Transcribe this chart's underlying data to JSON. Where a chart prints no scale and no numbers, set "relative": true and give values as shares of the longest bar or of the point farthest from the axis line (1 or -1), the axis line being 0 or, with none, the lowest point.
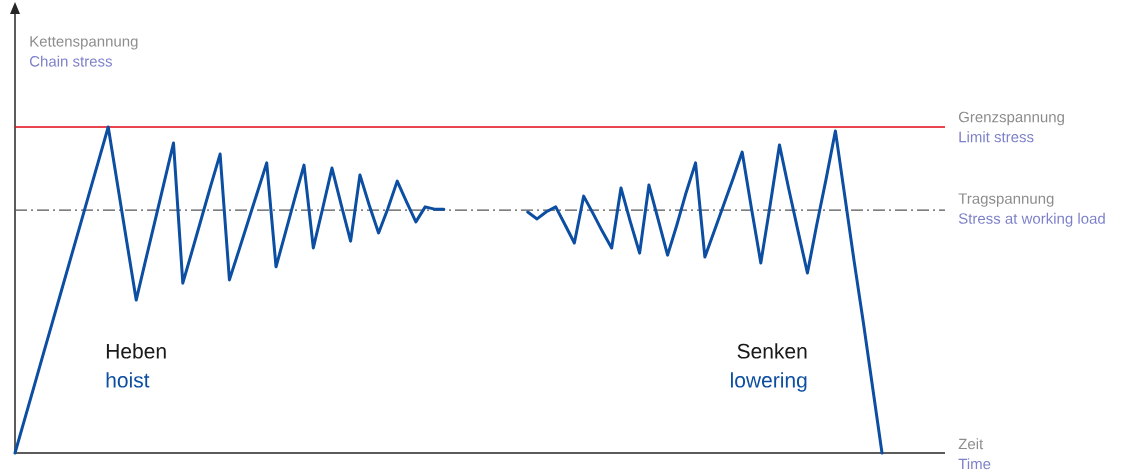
{
  "chart_data": {
    "type": "line",
    "relative": true,
    "xlabel": "Zeit",
    "annotations": [
      "Kettenspannung",
      "Chain stress",
      "Limit stress",
      "Stress at working load",
      "Time",
      "hoist",
      "lowering"
    ],
    "marker": "none",
    "categories": [
      null,
      null,
      null,
      null,
      null,
      null,
      null,
      null,
      null,
      null,
      null,
      null,
      null,
      null,
      null,
      null,
      null,
      null,
      null,
      null,
      null,
      null,
      null,
      null,
      null,
      null,
      null,
      null,
      null,
      null,
      null,
      null,
      null,
      null,
      null,
      null,
      null,
      null,
      null,
      null,
      null,
      null,
      null,
      null,
      null,
      null,
      null,
      null,
      null,
      null,
      null,
      null,
      null,
      null,
      null,
      null,
      null,
      null,
      null,
      null,
      null,
      null,
      null,
      null,
      null,
      null,
      null,
      null,
      null,
      null,
      null,
      null,
      null,
      null,
      null,
      null,
      null,
      null,
      null,
      null,
      null,
      null,
      null,
      null,
      null,
      null,
      null,
      null,
      null,
      null,
      null,
      null,
      null,
      null
    ],
    "ref_lines": [
      {
        "axis": "y",
        "value": 1.0,
        "label": "Grenzspannung",
        "color": "#e30613",
        "line_style": "solid"
      },
      {
        "axis": "y",
        "value": 0.745,
        "label": "Tragspannung",
        "color": "#555555",
        "line_style": "dashdot"
      }
    ],
    "series": [
      {
        "name": "Heben",
        "color": "#0b4ea2",
        "values": [
          0,
          0.1,
          0.2,
          0.3,
          0.4,
          0.5,
          0.6,
          0.7,
          0.8,
          0.9,
          1.0,
          0.823,
          0.646,
          0.469,
          0.59,
          0.71,
          0.83,
          0.951,
          0.521,
          0.62,
          0.72,
          0.82,
          0.917,
          0.531,
          0.62,
          0.71,
          0.8,
          0.89,
          0.571,
          0.675,
          0.78,
          0.883,
          0.629,
          0.75,
          0.874,
          0.76,
          0.65,
          0.853,
          0.76,
          0.675,
          0.75,
          0.834,
          0.77,
          0.709,
          0.755,
          0.748,
          0.748,
          null,
          null,
          null,
          null,
          null,
          null,
          null,
          null,
          null,
          null,
          null,
          null,
          null,
          null,
          null,
          null,
          null,
          null,
          null,
          null,
          null,
          null,
          null,
          null,
          null,
          null,
          null,
          null,
          null,
          null,
          null,
          null,
          null,
          null,
          null,
          null,
          null,
          null,
          null,
          null,
          null,
          null,
          null,
          null,
          null,
          null,
          null
        ]
      },
      {
        "name": "Senken",
        "color": "#0b4ea2",
        "values": [
          null,
          null,
          null,
          null,
          null,
          null,
          null,
          null,
          null,
          null,
          null,
          null,
          null,
          null,
          null,
          null,
          null,
          null,
          null,
          null,
          null,
          null,
          null,
          null,
          null,
          null,
          null,
          null,
          null,
          null,
          null,
          null,
          null,
          null,
          null,
          null,
          null,
          null,
          null,
          null,
          null,
          null,
          null,
          null,
          null,
          null,
          null,
          null,
          null,
          null,
          null,
          null,
          null,
          null,
          null,
          0.739,
          0.718,
          0.74,
          0.755,
          0.7,
          0.644,
          0.788,
          0.735,
          0.68,
          0.629,
          0.813,
          0.71,
          0.613,
          0.822,
          0.715,
          0.607,
          0.7,
          0.8,
          0.89,
          0.601,
          0.68,
          0.76,
          0.84,
          0.923,
          0.75,
          0.583,
          0.76,
          0.945,
          0.81,
          0.68,
          0.552,
          0.7,
          0.84,
          0.988,
          0.79,
          0.59,
          0.4,
          0.2,
          0
        ]
      }
    ]
  }
}
